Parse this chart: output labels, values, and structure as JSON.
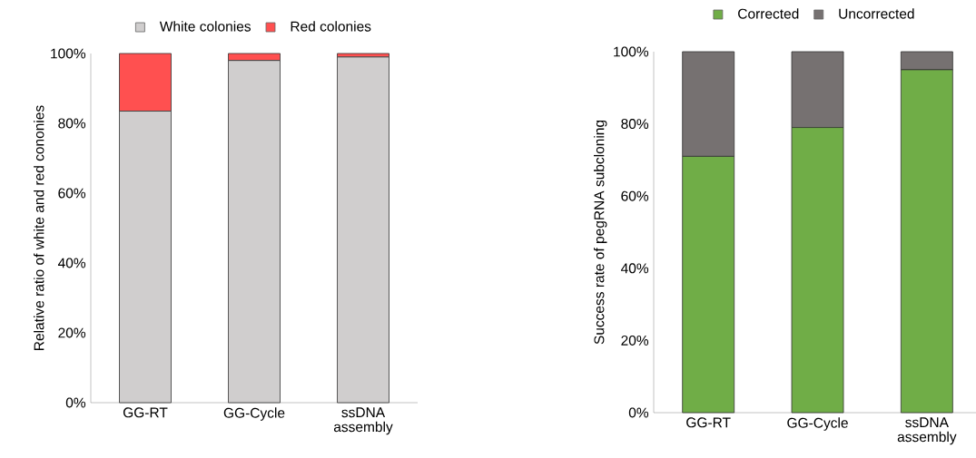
{
  "chart_data": [
    {
      "type": "bar",
      "stacked": true,
      "ylabel": "Relative ratio of white and red cononies",
      "categories": [
        "GG-RT",
        "GG-Cycle",
        "ssDNA assembly"
      ],
      "series": [
        {
          "name": "White colonies",
          "color": "#d0cece",
          "values": [
            83.5,
            98,
            99
          ]
        },
        {
          "name": "Red colonies",
          "color": "#ff5050",
          "values": [
            16.5,
            2,
            1
          ]
        }
      ],
      "ylim": [
        0,
        100
      ],
      "yticks": [
        {
          "value": 0,
          "label": "0%"
        },
        {
          "value": 20,
          "label": "20%"
        },
        {
          "value": 40,
          "label": "40%"
        },
        {
          "value": 60,
          "label": "60%"
        },
        {
          "value": 80,
          "label": "80%"
        },
        {
          "value": 100,
          "label": "100%"
        }
      ],
      "legend": "top",
      "grid": false
    },
    {
      "type": "bar",
      "stacked": true,
      "ylabel": "Success rate of pegRNA subcloning",
      "categories": [
        "GG-RT",
        "GG-Cycle",
        "ssDNA assembly"
      ],
      "series": [
        {
          "name": "Corrected",
          "color": "#70ad47",
          "values": [
            71,
            79,
            95
          ]
        },
        {
          "name": "Uncorrected",
          "color": "#767171",
          "values": [
            29,
            21,
            5
          ]
        }
      ],
      "ylim": [
        0,
        100
      ],
      "yticks": [
        {
          "value": 0,
          "label": "0%"
        },
        {
          "value": 20,
          "label": "20%"
        },
        {
          "value": 40,
          "label": "40%"
        },
        {
          "value": 60,
          "label": "60%"
        },
        {
          "value": 80,
          "label": "80%"
        },
        {
          "value": 100,
          "label": "100%"
        }
      ],
      "legend": "top",
      "grid": false
    }
  ]
}
